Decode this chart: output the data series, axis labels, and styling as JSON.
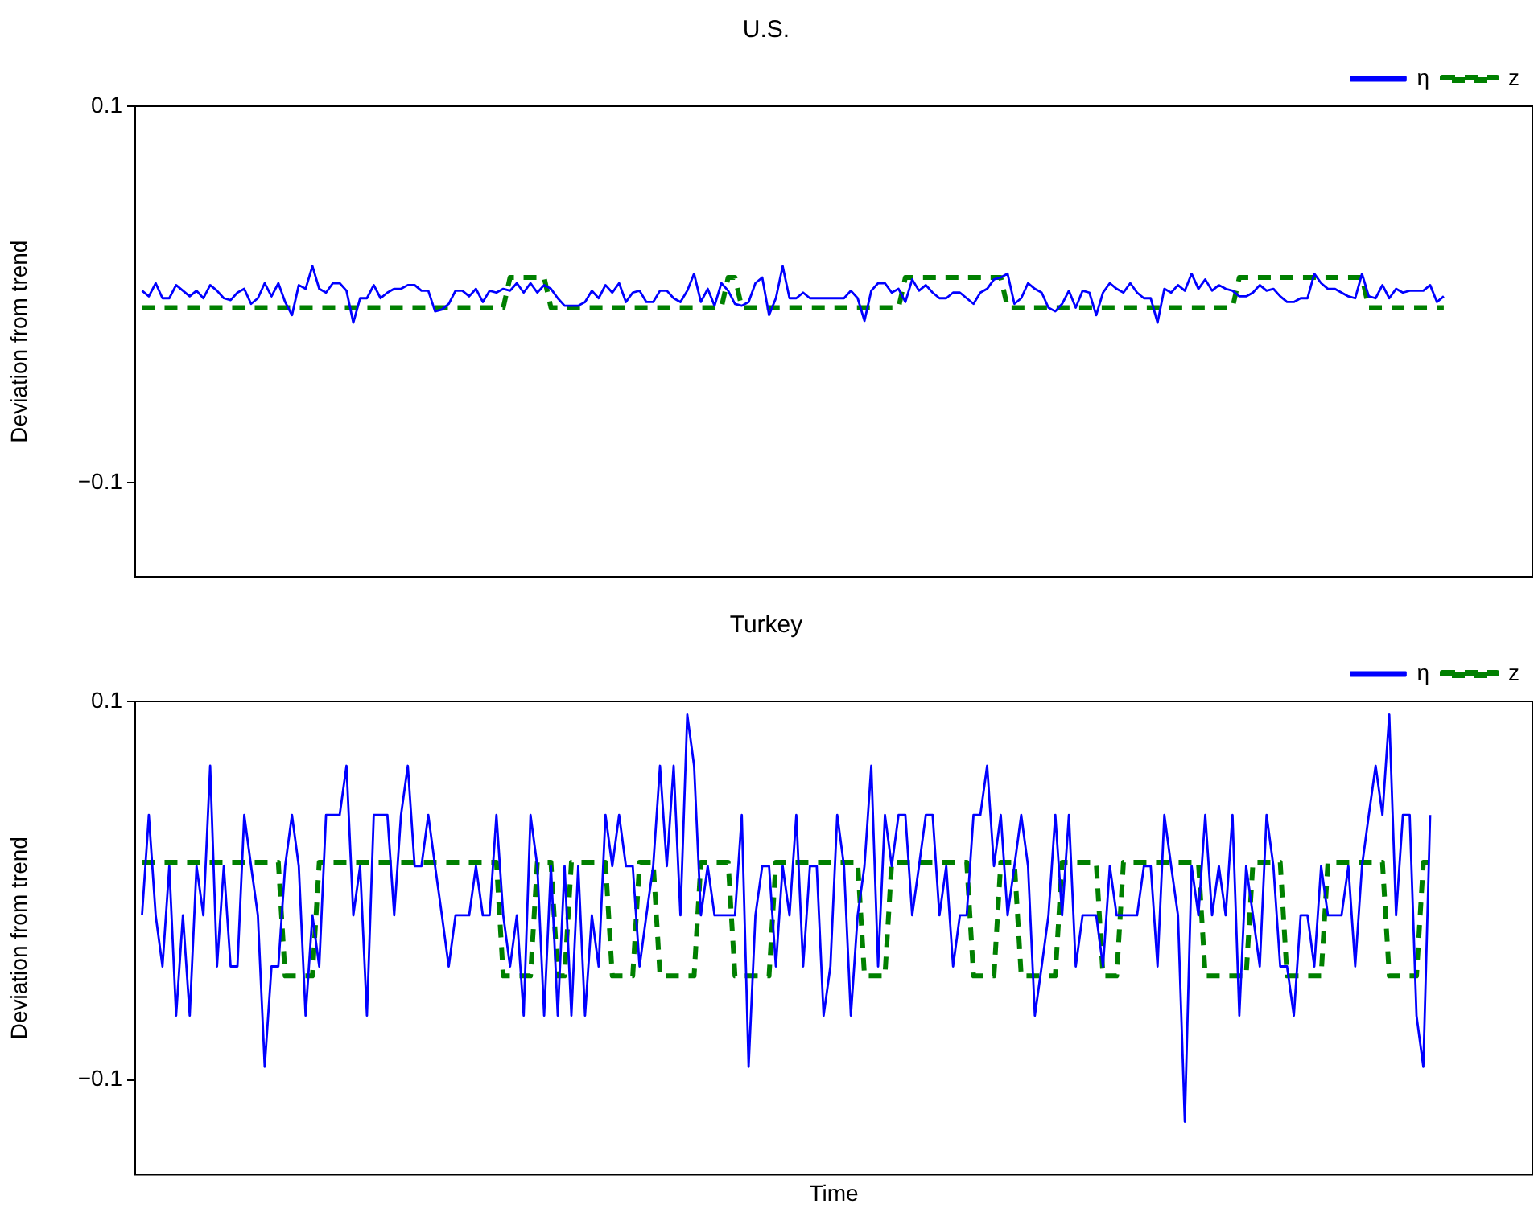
{
  "chart_data": [
    {
      "type": "line",
      "title": "U.S.",
      "ylabel": "Deviation from trend",
      "ylim": [
        -0.15,
        0.1
      ],
      "yticks": [
        0.1,
        {
          "value": -0.1,
          "label": "−0.1"
        }
      ],
      "legend": "top right",
      "tick_labels": "y",
      "categories": [
        null,
        null,
        null,
        null,
        null,
        null,
        null,
        null,
        null,
        null,
        null,
        null,
        null,
        null,
        null,
        null,
        null,
        null,
        null,
        null,
        null,
        null,
        null,
        null,
        null,
        null,
        null,
        null,
        null,
        null,
        null,
        null,
        null,
        null,
        null,
        null,
        null,
        null,
        null,
        null,
        null,
        null,
        null,
        null,
        null,
        null,
        null,
        null,
        null,
        null,
        null,
        null,
        null,
        null,
        null,
        null,
        null,
        null,
        null,
        null,
        null,
        null,
        null,
        null,
        null,
        null,
        null,
        null,
        null,
        null,
        null,
        null,
        null,
        null,
        null,
        null,
        null,
        null,
        null,
        null,
        null,
        null,
        null,
        null,
        null,
        null,
        null,
        null,
        null,
        null,
        null,
        null,
        null,
        null,
        null,
        null,
        null,
        null,
        null,
        null,
        null,
        null,
        null,
        null,
        null,
        null,
        null,
        null,
        null,
        null,
        null,
        null,
        null,
        null,
        null,
        null,
        null,
        null,
        null,
        null,
        null,
        null,
        null,
        null,
        null,
        null,
        null,
        null,
        null,
        null,
        null,
        null,
        null,
        null,
        null,
        null,
        null,
        null,
        null,
        null,
        null,
        null,
        null,
        null,
        null,
        null,
        null,
        null,
        null,
        null,
        null,
        null,
        null,
        null,
        null,
        null,
        null,
        null,
        null,
        null,
        null,
        null,
        null,
        null,
        null,
        null,
        null,
        null,
        null,
        null,
        null,
        null,
        null,
        null,
        null,
        null,
        null,
        null,
        null,
        null,
        null,
        null,
        null,
        null,
        null,
        null,
        null,
        null,
        null,
        null,
        null,
        null,
        null,
        null,
        null,
        null,
        null,
        null,
        null,
        null,
        null,
        null,
        null,
        null,
        null,
        null
      ],
      "series": [
        {
          "name": "η",
          "color": "#0000ff",
          "line_style": "solid",
          "values": [
            null,
            0.002,
            -0.001,
            0.006,
            -0.002,
            -0.002,
            0.005,
            0.002,
            -0.001,
            0.002,
            -0.002,
            0.005,
            0.002,
            -0.002,
            -0.003,
            0.001,
            0.003,
            -0.005,
            -0.002,
            0.006,
            -0.001,
            0.006,
            -0.004,
            -0.011,
            0.005,
            0.003,
            0.015,
            0.003,
            0.001,
            0.006,
            0.006,
            0.002,
            -0.015,
            -0.002,
            -0.002,
            0.005,
            -0.002,
            0.001,
            0.003,
            0.003,
            0.005,
            0.005,
            0.002,
            0.002,
            -0.009,
            -0.008,
            -0.005,
            0.002,
            0.002,
            -0.001,
            0.003,
            -0.004,
            0.002,
            0.001,
            0.003,
            0.002,
            0.006,
            0.001,
            0.006,
            0.001,
            0.005,
            0.003,
            -0.002,
            -0.006,
            -0.006,
            -0.006,
            -0.004,
            0.002,
            -0.002,
            0.005,
            0.001,
            0.006,
            -0.004,
            0.001,
            0.002,
            -0.004,
            -0.004,
            0.002,
            0.002,
            -0.002,
            -0.004,
            0.002,
            0.011,
            -0.004,
            0.003,
            -0.006,
            0.006,
            0.002,
            -0.005,
            -0.006,
            -0.004,
            0.006,
            0.009,
            -0.011,
            -0.002,
            0.015,
            -0.002,
            -0.002,
            0.001,
            -0.002,
            -0.002,
            -0.002,
            -0.002,
            -0.002,
            -0.002,
            0.002,
            -0.002,
            -0.014,
            0.002,
            0.006,
            0.006,
            0.001,
            0.003,
            -0.004,
            0.008,
            0.002,
            0.005,
            0.001,
            -0.002,
            -0.002,
            0.001,
            0.001,
            -0.002,
            -0.005,
            0.001,
            0.003,
            0.008,
            0.009,
            0.011,
            -0.005,
            -0.002,
            0.006,
            0.003,
            0.001,
            -0.007,
            -0.009,
            -0.005,
            0.002,
            -0.007,
            0.002,
            0.001,
            -0.011,
            0.001,
            0.006,
            0.003,
            0.001,
            0.006,
            0.001,
            -0.002,
            -0.002,
            -0.015,
            0.003,
            0.001,
            0.005,
            0.002,
            0.011,
            0.003,
            0.008,
            0.002,
            0.005,
            0.003,
            0.002,
            -0.001,
            -0.001,
            0.001,
            0.005,
            0.002,
            0.003,
            -0.001,
            -0.004,
            -0.004,
            -0.002,
            -0.002,
            0.011,
            0.006,
            0.003,
            0.003,
            0.001,
            -0.001,
            -0.002,
            0.011,
            -0.001,
            -0.002,
            0.005,
            -0.002,
            0.003,
            0.001,
            0.002,
            0.002,
            0.002,
            0.005,
            -0.004,
            -0.001,
            null,
            null,
            null,
            null,
            null,
            null,
            null,
            null,
            null,
            null,
            null,
            null,
            null
          ]
        },
        {
          "name": "z",
          "color": "#008000",
          "line_style": "dashed",
          "values": [
            null,
            -0.007,
            -0.007,
            -0.007,
            -0.007,
            -0.007,
            -0.007,
            -0.007,
            -0.007,
            -0.007,
            -0.007,
            -0.007,
            -0.007,
            -0.007,
            -0.007,
            -0.007,
            -0.007,
            -0.007,
            -0.007,
            -0.007,
            -0.007,
            -0.007,
            -0.007,
            -0.007,
            -0.007,
            -0.007,
            -0.007,
            -0.007,
            -0.007,
            -0.007,
            -0.007,
            -0.007,
            -0.007,
            -0.007,
            -0.007,
            -0.007,
            -0.007,
            -0.007,
            -0.007,
            -0.007,
            -0.007,
            -0.007,
            -0.007,
            -0.007,
            -0.007,
            -0.007,
            -0.007,
            -0.007,
            -0.007,
            -0.007,
            -0.007,
            -0.007,
            -0.007,
            -0.007,
            -0.007,
            0.009,
            0.009,
            0.009,
            0.009,
            0.009,
            0.009,
            -0.007,
            -0.007,
            -0.007,
            -0.007,
            -0.007,
            -0.007,
            -0.007,
            -0.007,
            -0.007,
            -0.007,
            -0.007,
            -0.007,
            -0.007,
            -0.007,
            -0.007,
            -0.007,
            -0.007,
            -0.007,
            -0.007,
            -0.007,
            -0.007,
            -0.007,
            -0.007,
            -0.007,
            -0.007,
            -0.007,
            0.009,
            0.009,
            -0.007,
            -0.007,
            -0.007,
            -0.007,
            -0.007,
            -0.007,
            -0.007,
            -0.007,
            -0.007,
            -0.007,
            -0.007,
            -0.007,
            -0.007,
            -0.007,
            -0.007,
            -0.007,
            -0.007,
            -0.007,
            -0.007,
            -0.007,
            -0.007,
            -0.007,
            -0.007,
            -0.007,
            0.009,
            0.009,
            0.009,
            0.009,
            0.009,
            0.009,
            0.009,
            0.009,
            0.009,
            0.009,
            0.009,
            0.009,
            0.009,
            0.009,
            0.009,
            -0.007,
            -0.007,
            -0.007,
            -0.007,
            -0.007,
            -0.007,
            -0.007,
            -0.007,
            -0.007,
            -0.007,
            -0.007,
            -0.007,
            -0.007,
            -0.007,
            -0.007,
            -0.007,
            -0.007,
            -0.007,
            -0.007,
            -0.007,
            -0.007,
            -0.007,
            -0.007,
            -0.007,
            -0.007,
            -0.007,
            -0.007,
            -0.007,
            -0.007,
            -0.007,
            -0.007,
            -0.007,
            -0.007,
            -0.007,
            0.009,
            0.009,
            0.009,
            0.009,
            0.009,
            0.009,
            0.009,
            0.009,
            0.009,
            0.009,
            0.009,
            0.009,
            0.009,
            0.009,
            0.009,
            0.009,
            0.009,
            0.009,
            0.009,
            -0.007,
            -0.007,
            -0.007,
            -0.007,
            -0.007,
            -0.007,
            -0.007,
            -0.007,
            -0.007,
            -0.007,
            -0.007,
            -0.007,
            null,
            null,
            null,
            null,
            null,
            null,
            null,
            null,
            null,
            null,
            null,
            null,
            null
          ]
        }
      ]
    },
    {
      "type": "line",
      "title": "Turkey",
      "xlabel": "Time",
      "ylabel": "Deviation from trend",
      "ylim": [
        -0.15,
        0.1
      ],
      "yticks": [
        0.1,
        {
          "value": -0.1,
          "label": "−0.1"
        }
      ],
      "legend": "top right",
      "tick_labels": "y",
      "categories": [
        null,
        null,
        null,
        null,
        null,
        null,
        null,
        null,
        null,
        null,
        null,
        null,
        null,
        null,
        null,
        null,
        null,
        null,
        null,
        null,
        null,
        null,
        null,
        null,
        null,
        null,
        null,
        null,
        null,
        null,
        null,
        null,
        null,
        null,
        null,
        null,
        null,
        null,
        null,
        null,
        null,
        null,
        null,
        null,
        null,
        null,
        null,
        null,
        null,
        null,
        null,
        null,
        null,
        null,
        null,
        null,
        null,
        null,
        null,
        null,
        null,
        null,
        null,
        null,
        null,
        null,
        null,
        null,
        null,
        null,
        null,
        null,
        null,
        null,
        null,
        null,
        null,
        null,
        null,
        null,
        null,
        null,
        null,
        null,
        null,
        null,
        null,
        null,
        null,
        null,
        null,
        null,
        null,
        null,
        null,
        null,
        null,
        null,
        null,
        null,
        null,
        null,
        null,
        null,
        null,
        null,
        null,
        null,
        null,
        null,
        null,
        null,
        null,
        null,
        null,
        null,
        null,
        null,
        null,
        null,
        null,
        null,
        null,
        null,
        null,
        null,
        null,
        null,
        null,
        null,
        null,
        null,
        null,
        null,
        null,
        null,
        null,
        null,
        null,
        null,
        null,
        null,
        null,
        null,
        null,
        null,
        null,
        null,
        null,
        null,
        null,
        null,
        null,
        null,
        null,
        null,
        null,
        null,
        null,
        null,
        null,
        null,
        null,
        null,
        null,
        null,
        null,
        null,
        null,
        null,
        null,
        null,
        null,
        null,
        null,
        null,
        null,
        null,
        null,
        null,
        null,
        null,
        null,
        null,
        null,
        null,
        null,
        null,
        null,
        null,
        null,
        null,
        null,
        null,
        null,
        null,
        null,
        null,
        null,
        null,
        null,
        null,
        null,
        null,
        null,
        null
      ],
      "series": [
        {
          "name": "η",
          "color": "#0000ff",
          "line_style": "solid",
          "values": [
            null,
            -0.013,
            0.04,
            -0.013,
            -0.04,
            0.013,
            -0.066,
            -0.013,
            -0.066,
            0.013,
            -0.013,
            0.066,
            -0.04,
            0.013,
            -0.04,
            -0.04,
            0.04,
            0.013,
            -0.013,
            -0.093,
            -0.04,
            -0.04,
            0.013,
            0.04,
            0.013,
            -0.066,
            -0.013,
            -0.04,
            0.04,
            0.04,
            0.04,
            0.066,
            -0.013,
            0.013,
            -0.066,
            0.04,
            0.04,
            0.04,
            -0.013,
            0.04,
            0.066,
            0.013,
            0.013,
            0.04,
            0.013,
            -0.013,
            -0.04,
            -0.013,
            -0.013,
            -0.013,
            0.013,
            -0.013,
            -0.013,
            0.04,
            -0.013,
            -0.04,
            -0.013,
            -0.066,
            0.04,
            0.013,
            -0.066,
            0.013,
            -0.066,
            0.013,
            -0.066,
            0.013,
            -0.066,
            -0.013,
            -0.04,
            0.04,
            0.013,
            0.04,
            0.013,
            0.013,
            -0.04,
            -0.013,
            0.013,
            0.066,
            0.013,
            0.066,
            -0.013,
            0.093,
            0.066,
            -0.013,
            0.013,
            -0.013,
            -0.013,
            -0.013,
            -0.013,
            0.04,
            -0.093,
            -0.013,
            0.013,
            0.013,
            -0.04,
            0.013,
            -0.013,
            0.04,
            -0.04,
            0.013,
            0.013,
            -0.066,
            -0.04,
            0.04,
            0.013,
            -0.066,
            -0.013,
            0.013,
            0.066,
            -0.04,
            0.04,
            0.013,
            0.04,
            0.04,
            -0.013,
            0.013,
            0.04,
            0.04,
            -0.013,
            0.013,
            -0.04,
            -0.013,
            -0.013,
            0.04,
            0.04,
            0.066,
            0.013,
            0.04,
            -0.013,
            0.013,
            0.04,
            0.013,
            -0.066,
            -0.04,
            -0.013,
            0.04,
            -0.013,
            0.04,
            -0.04,
            -0.013,
            -0.013,
            -0.013,
            -0.04,
            0.013,
            -0.013,
            -0.013,
            -0.013,
            -0.013,
            0.013,
            0.013,
            -0.04,
            0.04,
            0.013,
            -0.013,
            -0.122,
            0.013,
            -0.013,
            0.04,
            -0.013,
            0.013,
            -0.013,
            0.04,
            -0.066,
            0.013,
            -0.013,
            -0.04,
            0.04,
            0.013,
            -0.04,
            -0.04,
            -0.066,
            -0.013,
            -0.013,
            -0.04,
            0.013,
            -0.013,
            -0.013,
            -0.013,
            0.013,
            -0.04,
            0.013,
            0.04,
            0.066,
            0.04,
            0.093,
            -0.013,
            0.04,
            0.04,
            -0.066,
            -0.093,
            0.04,
            null,
            null,
            null,
            null,
            null,
            null,
            null,
            null,
            null,
            null,
            null,
            null,
            null,
            null,
            null
          ]
        },
        {
          "name": "z",
          "color": "#008000",
          "line_style": "dashed",
          "values": [
            null,
            0.015,
            0.015,
            0.015,
            0.015,
            0.015,
            0.015,
            0.015,
            0.015,
            0.015,
            0.015,
            0.015,
            0.015,
            0.015,
            0.015,
            0.015,
            0.015,
            0.015,
            0.015,
            0.015,
            0.015,
            0.015,
            -0.045,
            -0.045,
            -0.045,
            -0.045,
            -0.045,
            0.015,
            0.015,
            0.015,
            0.015,
            0.015,
            0.015,
            0.015,
            0.015,
            0.015,
            0.015,
            0.015,
            0.015,
            0.015,
            0.015,
            0.015,
            0.015,
            0.015,
            0.015,
            0.015,
            0.015,
            0.015,
            0.015,
            0.015,
            0.015,
            0.015,
            0.015,
            0.015,
            -0.045,
            -0.045,
            -0.045,
            -0.045,
            -0.045,
            0.015,
            0.015,
            0.015,
            -0.045,
            -0.045,
            0.015,
            0.015,
            0.015,
            0.015,
            0.015,
            0.015,
            -0.045,
            -0.045,
            -0.045,
            -0.045,
            0.015,
            0.015,
            0.015,
            -0.045,
            -0.045,
            -0.045,
            -0.045,
            -0.045,
            -0.045,
            0.015,
            0.015,
            0.015,
            0.015,
            0.015,
            -0.045,
            -0.045,
            -0.045,
            -0.045,
            -0.045,
            -0.045,
            0.015,
            0.015,
            0.015,
            0.015,
            0.015,
            0.015,
            0.015,
            0.015,
            0.015,
            0.015,
            0.015,
            0.015,
            0.015,
            -0.045,
            -0.045,
            -0.045,
            -0.045,
            0.015,
            0.015,
            0.015,
            0.015,
            0.015,
            0.015,
            0.015,
            0.015,
            0.015,
            0.015,
            0.015,
            0.015,
            -0.045,
            -0.045,
            -0.045,
            -0.045,
            0.015,
            0.015,
            0.015,
            -0.045,
            -0.045,
            -0.045,
            -0.045,
            -0.045,
            -0.045,
            0.015,
            0.015,
            0.015,
            0.015,
            0.015,
            0.015,
            -0.045,
            -0.045,
            -0.045,
            0.015,
            0.015,
            0.015,
            0.015,
            0.015,
            0.015,
            0.015,
            0.015,
            0.015,
            0.015,
            0.015,
            0.015,
            -0.045,
            -0.045,
            -0.045,
            -0.045,
            -0.045,
            -0.045,
            -0.045,
            0.015,
            0.015,
            0.015,
            0.015,
            0.015,
            -0.045,
            -0.045,
            -0.045,
            -0.045,
            -0.045,
            -0.045,
            0.015,
            0.015,
            0.015,
            0.015,
            0.015,
            0.015,
            0.015,
            0.015,
            0.015,
            -0.045,
            -0.045,
            -0.045,
            -0.045,
            -0.045,
            0.015,
            0.015,
            null,
            null,
            null,
            null,
            null,
            null,
            null,
            null,
            null,
            null,
            null,
            null,
            null,
            null,
            null
          ]
        }
      ]
    }
  ]
}
